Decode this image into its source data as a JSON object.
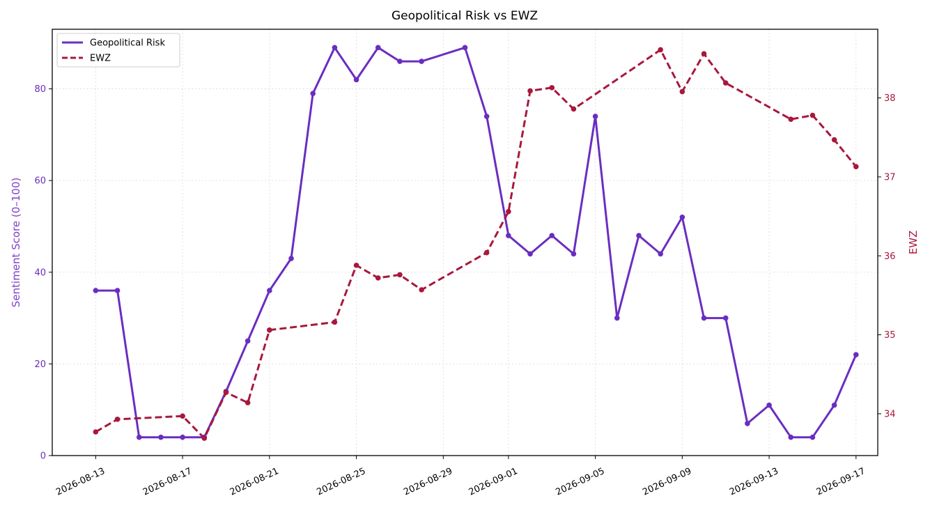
{
  "chart_data": {
    "type": "line",
    "title": "Geopolitical Risk vs EWZ",
    "ylabel": "Sentiment Score (0–100)",
    "y2label": "EWZ",
    "ylim": [
      0,
      93
    ],
    "y2lim": [
      33.47,
      38.87
    ],
    "xlim": [
      "2026-08-11",
      "2026-09-18"
    ],
    "xticks": [
      "2026-08-13",
      "2026-08-17",
      "2026-08-21",
      "2026-08-25",
      "2026-08-29",
      "2026-09-01",
      "2026-09-05",
      "2026-09-09",
      "2026-09-13",
      "2026-09-17"
    ],
    "yticks": [
      0,
      20,
      40,
      60,
      80
    ],
    "y2ticks": [
      34,
      35,
      36,
      37,
      38
    ],
    "grid": true,
    "legend_position": "top-left",
    "colors": {
      "risk": "#6a2dc1",
      "ewz": "#a8183c"
    },
    "series": [
      {
        "name": "Geopolitical Risk",
        "axis": "left",
        "style": "solid",
        "x": [
          "2026-08-13",
          "2026-08-14",
          "2026-08-15",
          "2026-08-16",
          "2026-08-17",
          "2026-08-18",
          "2026-08-19",
          "2026-08-20",
          "2026-08-21",
          "2026-08-22",
          "2026-08-23",
          "2026-08-24",
          "2026-08-25",
          "2026-08-26",
          "2026-08-27",
          "2026-08-28",
          "2026-08-30",
          "2026-08-31",
          "2026-09-01",
          "2026-09-02",
          "2026-09-03",
          "2026-09-04",
          "2026-09-05",
          "2026-09-06",
          "2026-09-07",
          "2026-09-08",
          "2026-09-09",
          "2026-09-10",
          "2026-09-11",
          "2026-09-12",
          "2026-09-13",
          "2026-09-14",
          "2026-09-15",
          "2026-09-16",
          "2026-09-17"
        ],
        "values": [
          36,
          36,
          4,
          4,
          4,
          4,
          14,
          25,
          36,
          43,
          79,
          89,
          82,
          89,
          86,
          86,
          89,
          74,
          48,
          44,
          48,
          44,
          74,
          30,
          48,
          44,
          52,
          30,
          30,
          7,
          11,
          4,
          4,
          11,
          22
        ]
      },
      {
        "name": "EWZ",
        "axis": "right",
        "style": "dashed",
        "x": [
          "2026-08-13",
          "2026-08-14",
          "2026-08-17",
          "2026-08-18",
          "2026-08-19",
          "2026-08-20",
          "2026-08-21",
          "2026-08-24",
          "2026-08-25",
          "2026-08-26",
          "2026-08-27",
          "2026-08-28",
          "2026-08-31",
          "2026-09-01",
          "2026-09-02",
          "2026-09-03",
          "2026-09-04",
          "2026-09-08",
          "2026-09-09",
          "2026-09-10",
          "2026-09-11",
          "2026-09-14",
          "2026-09-15",
          "2026-09-16",
          "2026-09-17"
        ],
        "values": [
          33.77,
          33.93,
          33.97,
          33.69,
          34.27,
          34.14,
          35.06,
          35.16,
          35.88,
          35.72,
          35.76,
          35.57,
          36.04,
          36.56,
          38.09,
          38.13,
          37.86,
          38.61,
          38.08,
          38.56,
          38.19,
          37.73,
          37.78,
          37.47,
          37.13
        ]
      }
    ]
  }
}
